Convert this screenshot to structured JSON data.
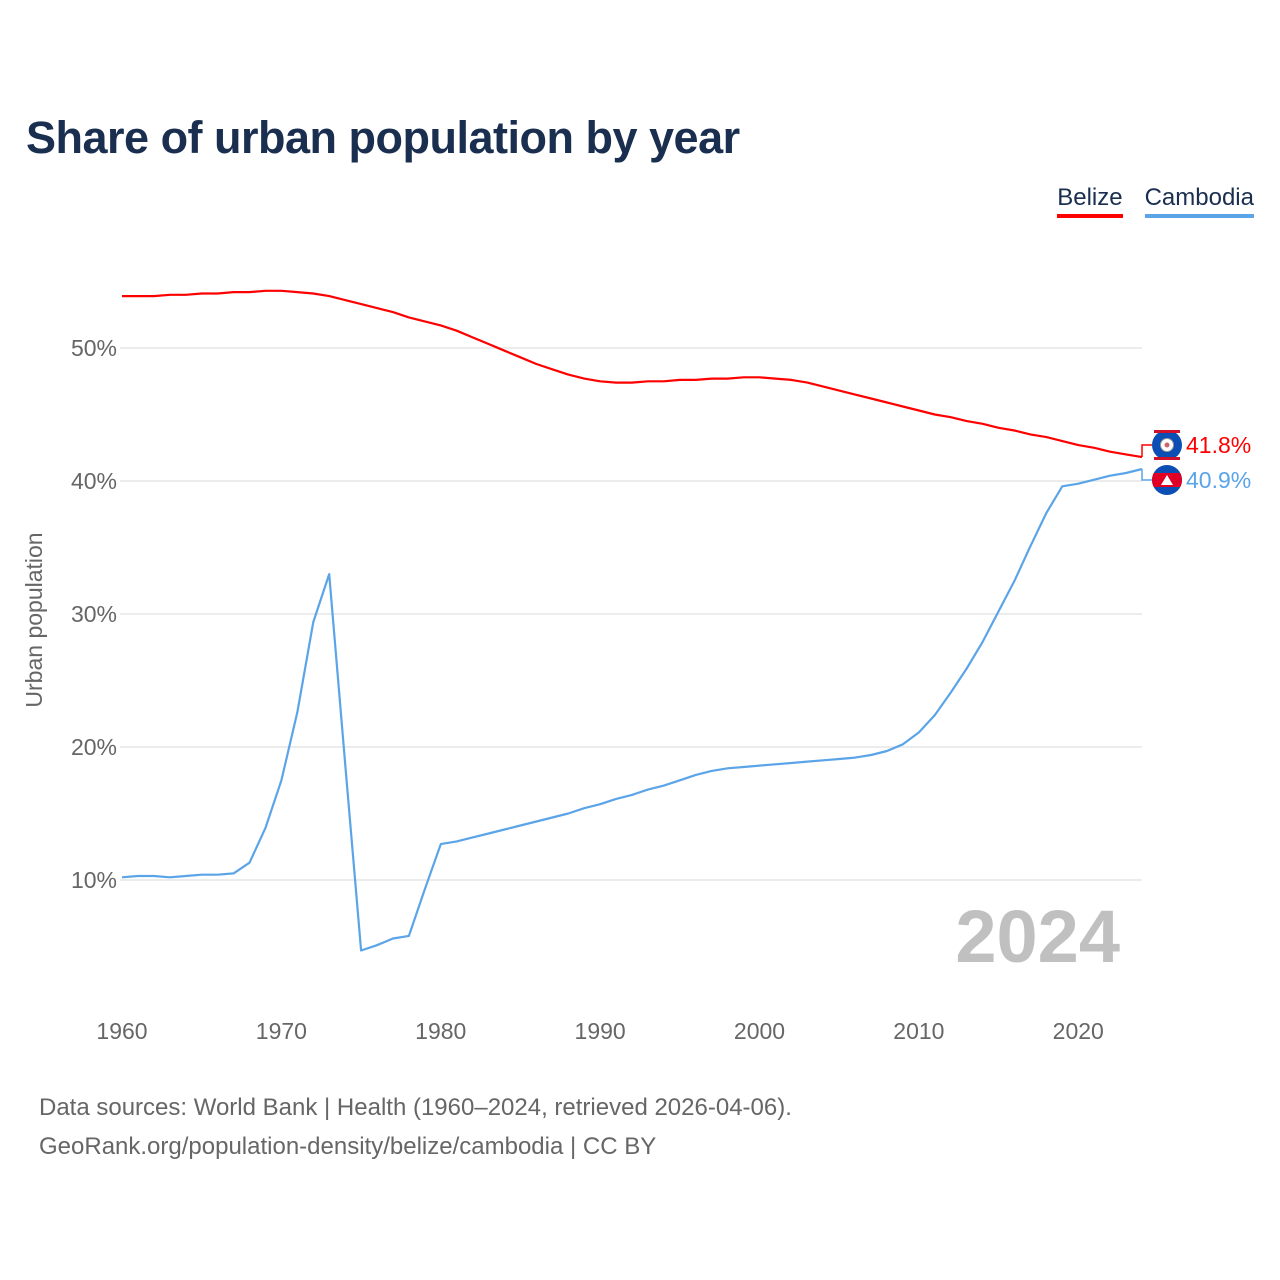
{
  "title": "Share of urban population by year",
  "legend": [
    {
      "name": "Belize",
      "color": "#ff0000"
    },
    {
      "name": "Cambodia",
      "color": "#5ba4e8"
    }
  ],
  "year_watermark": "2024",
  "footer": {
    "line1": "Data sources: World Bank | Health (1960–2024, retrieved 2026-04-06).",
    "line2": "GeoRank.org/population-density/belize/cambodia | CC BY"
  },
  "chart_data": {
    "type": "line",
    "title": "Share of urban population by year",
    "xlabel": "",
    "ylabel": "Urban population",
    "xlim": [
      1960,
      2024
    ],
    "ylim": [
      2,
      56
    ],
    "x_ticks": [
      "1960",
      "1970",
      "1980",
      "1990",
      "2000",
      "2010",
      "2020"
    ],
    "y_ticks": [
      "10%",
      "20%",
      "30%",
      "40%",
      "50%"
    ],
    "grid": true,
    "legend_position": "top-right",
    "x": [
      1960,
      1961,
      1962,
      1963,
      1964,
      1965,
      1966,
      1967,
      1968,
      1969,
      1970,
      1971,
      1972,
      1973,
      1974,
      1975,
      1976,
      1977,
      1978,
      1979,
      1980,
      1981,
      1982,
      1983,
      1984,
      1985,
      1986,
      1987,
      1988,
      1989,
      1990,
      1991,
      1992,
      1993,
      1994,
      1995,
      1996,
      1997,
      1998,
      1999,
      2000,
      2001,
      2002,
      2003,
      2004,
      2005,
      2006,
      2007,
      2008,
      2009,
      2010,
      2011,
      2012,
      2013,
      2014,
      2015,
      2016,
      2017,
      2018,
      2019,
      2020,
      2021,
      2022,
      2023,
      2024
    ],
    "series": [
      {
        "name": "Belize",
        "color": "#ff0000",
        "end_label": "41.8%",
        "values": [
          53.9,
          53.9,
          53.9,
          54.0,
          54.0,
          54.1,
          54.1,
          54.2,
          54.2,
          54.3,
          54.3,
          54.2,
          54.1,
          53.9,
          53.6,
          53.3,
          53.0,
          52.7,
          52.3,
          52.0,
          51.7,
          51.3,
          50.8,
          50.3,
          49.8,
          49.3,
          48.8,
          48.4,
          48.0,
          47.7,
          47.5,
          47.4,
          47.4,
          47.5,
          47.5,
          47.6,
          47.6,
          47.7,
          47.7,
          47.8,
          47.8,
          47.7,
          47.6,
          47.4,
          47.1,
          46.8,
          46.5,
          46.2,
          45.9,
          45.6,
          45.3,
          45.0,
          44.8,
          44.5,
          44.3,
          44.0,
          43.8,
          43.5,
          43.3,
          43.0,
          42.7,
          42.5,
          42.2,
          42.0,
          41.8
        ]
      },
      {
        "name": "Cambodia",
        "color": "#5ba4e8",
        "end_label": "40.9%",
        "values": [
          10.2,
          10.3,
          10.3,
          10.2,
          10.3,
          10.4,
          10.4,
          10.5,
          11.3,
          13.9,
          17.5,
          22.6,
          29.4,
          33.0,
          18.8,
          4.7,
          5.1,
          5.6,
          5.8,
          9.3,
          12.7,
          12.9,
          13.2,
          13.5,
          13.8,
          14.1,
          14.4,
          14.7,
          15.0,
          15.4,
          15.7,
          16.1,
          16.4,
          16.8,
          17.1,
          17.5,
          17.9,
          18.2,
          18.4,
          18.5,
          18.6,
          18.7,
          18.8,
          18.9,
          19.0,
          19.1,
          19.2,
          19.4,
          19.7,
          20.2,
          21.1,
          22.4,
          24.1,
          25.9,
          27.9,
          30.2,
          32.5,
          35.1,
          37.6,
          39.6,
          39.8,
          40.1,
          40.4,
          40.6,
          40.9
        ]
      }
    ]
  }
}
